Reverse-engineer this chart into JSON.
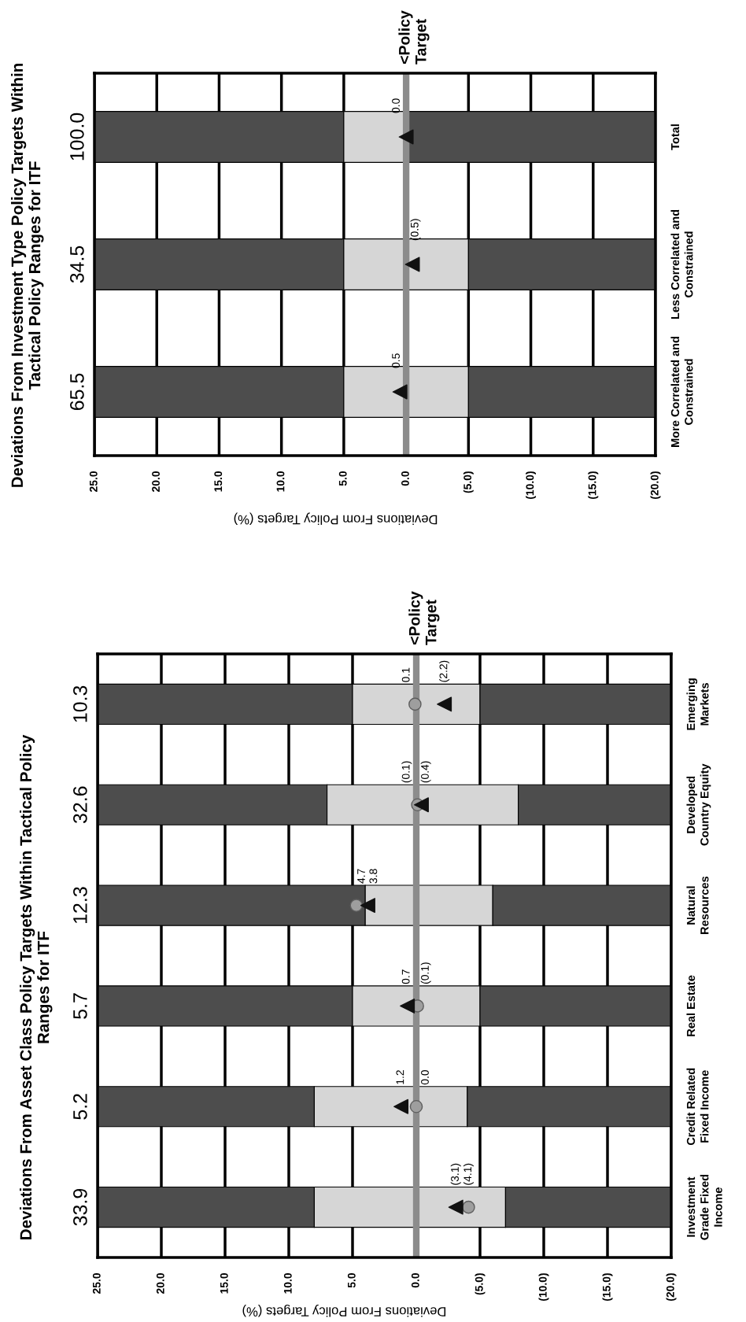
{
  "chart_data": [
    {
      "type": "bar",
      "orientation": "horizontal",
      "title": "Deviations From Investment Type Policy Targets Within\nTactical Policy Ranges for ITF",
      "xlabel": "Deviations From Policy Targets (%)",
      "categories": [
        "Total",
        "Less Correlated and\nConstrained",
        "More Correlated and\nConstrained"
      ],
      "series": [
        {
          "color": "#4d4d4d",
          "base": [
            5,
            5,
            5
          ],
          "values": [
            20,
            20,
            20
          ]
        },
        {
          "color": "#d6d6d6",
          "base": [
            0,
            -5,
            -5
          ],
          "values": [
            5,
            10,
            10
          ]
        },
        {
          "color": "#4d4d4d",
          "base": [
            -20,
            -20,
            -20
          ],
          "values": [
            20,
            15,
            15
          ]
        },
        {
          "type": "scatter",
          "marker": "triangle",
          "color": "#111111",
          "values": [
            0.0,
            -0.5,
            0.5
          ],
          "value_labels": [
            "0.0",
            "(0.5)",
            "0.5"
          ]
        }
      ],
      "xlim": [
        25,
        -20
      ],
      "xticks": [
        {
          "value": 25,
          "label": "25.0"
        },
        {
          "value": 20,
          "label": "20.0"
        },
        {
          "value": 15,
          "label": "15.0"
        },
        {
          "value": 10,
          "label": "10.0"
        },
        {
          "value": 5,
          "label": "5.0"
        },
        {
          "value": 0,
          "label": "0.0"
        },
        {
          "value": -5,
          "label": "(5.0)"
        },
        {
          "value": -10,
          "label": "(10.0)"
        },
        {
          "value": -15,
          "label": "(15.0)"
        },
        {
          "value": -20,
          "label": "(20.0)"
        }
      ],
      "grid": "x",
      "ref_lines": [
        {
          "axis": "x",
          "value": 0,
          "label": "<Policy\nTarget",
          "color": "#8c8c8c"
        }
      ],
      "annotations": [
        "100.0",
        "34.5",
        "65.5"
      ]
    },
    {
      "type": "bar",
      "orientation": "horizontal",
      "title": "Deviations From Asset Class Policy Targets Within Tactical Policy\nRanges for ITF",
      "xlabel": "Deviations From Policy Targets (%)",
      "categories": [
        "Emerging\nMarkets",
        "Developed\nCountry Equity",
        "Natural\nResources",
        "Real Estate",
        "Credit Related\nFixed Income",
        "Investment\nGrade Fixed\nIncome"
      ],
      "series": [
        {
          "color": "#4d4d4d",
          "base": [
            5,
            7,
            4,
            5,
            8,
            8
          ],
          "values": [
            20,
            18,
            21,
            20,
            17,
            17
          ]
        },
        {
          "color": "#d6d6d6",
          "base": [
            -5,
            -8,
            -6,
            -5,
            -4,
            -7
          ],
          "values": [
            10,
            15,
            10,
            10,
            12,
            15
          ]
        },
        {
          "color": "#4d4d4d",
          "base": [
            -20,
            -20,
            -20,
            -20,
            -20,
            -20
          ],
          "values": [
            15,
            12,
            14,
            15,
            16,
            13
          ]
        },
        {
          "type": "scatter",
          "marker": "circle",
          "color": "#9e9e9e",
          "values": [
            0.1,
            -0.1,
            4.7,
            -0.1,
            0.0,
            -4.1
          ],
          "value_labels": [
            "0.1",
            "(0.1)",
            "4.7",
            "(0.1)",
            "0.0",
            "(4.1)"
          ]
        },
        {
          "type": "scatter",
          "marker": "triangle",
          "color": "#111111",
          "values": [
            -2.2,
            -0.4,
            3.8,
            0.7,
            1.2,
            -3.1
          ],
          "value_labels": [
            "(2.2)",
            "(0.4)",
            "3.8",
            "0.7",
            "1.2",
            "(3.1)"
          ]
        }
      ],
      "xlim": [
        25,
        -20
      ],
      "xticks": [
        {
          "value": 25,
          "label": "25.0"
        },
        {
          "value": 20,
          "label": "20.0"
        },
        {
          "value": 15,
          "label": "15.0"
        },
        {
          "value": 10,
          "label": "10.0"
        },
        {
          "value": 5,
          "label": "5.0"
        },
        {
          "value": 0,
          "label": "0.0"
        },
        {
          "value": -5,
          "label": "(5.0)"
        },
        {
          "value": -10,
          "label": "(10.0)"
        },
        {
          "value": -15,
          "label": "(15.0)"
        },
        {
          "value": -20,
          "label": "(20.0)"
        }
      ],
      "grid": "x",
      "ref_lines": [
        {
          "axis": "x",
          "value": 0,
          "label": "<Policy\nTarget",
          "color": "#8c8c8c"
        }
      ],
      "annotations": [
        "10.3",
        "32.6",
        "12.3",
        "5.7",
        "5.2",
        "33.9"
      ]
    }
  ]
}
